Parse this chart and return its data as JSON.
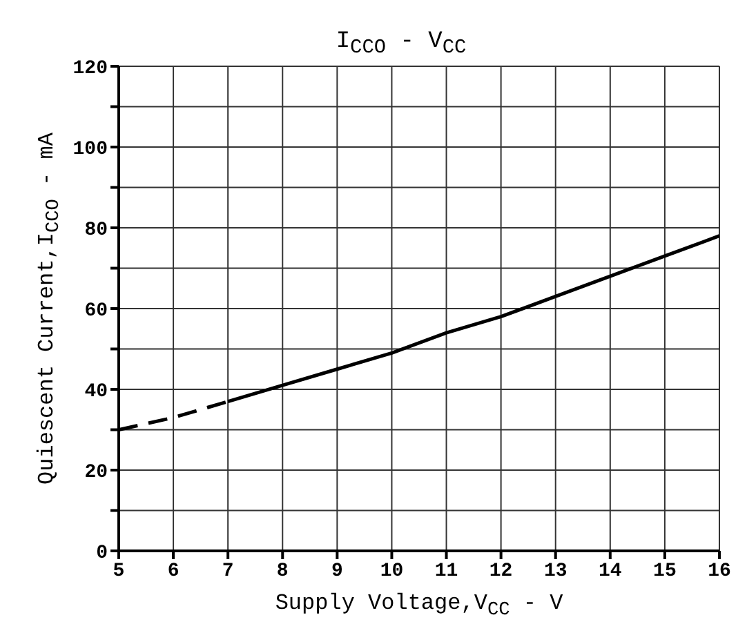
{
  "chart_data": {
    "type": "line",
    "title": "I$_{CCO}$ - V$_{CC}$",
    "xlabel": "Supply Voltage,V$_{CC}$ - V",
    "ylabel": "Quiescent Current,I$_{CCO}$ - mA",
    "series": [
      {
        "color": "#000000",
        "line_style": "dashed",
        "x": [
          5,
          6,
          7
        ],
        "values": [
          30,
          33,
          37
        ]
      },
      {
        "color": "#000000",
        "line_style": "solid",
        "x": [
          7,
          8,
          9,
          10,
          11,
          12,
          13,
          14,
          15,
          16
        ],
        "values": [
          37,
          41,
          45,
          49,
          54,
          58,
          63,
          68,
          73,
          78
        ]
      }
    ],
    "xlim": [
      5,
      16
    ],
    "xticks": [
      5,
      6,
      7,
      8,
      9,
      10,
      11,
      12,
      13,
      14,
      15,
      16
    ],
    "ylim": [
      0,
      120
    ],
    "yticks": [
      0,
      {
        "value": 10,
        "label": null
      },
      20,
      {
        "value": 30,
        "label": null
      },
      40,
      {
        "value": 50,
        "label": null
      },
      60,
      {
        "value": 70,
        "label": null
      },
      80,
      {
        "value": 90,
        "label": null
      },
      100,
      {
        "value": 110,
        "label": null
      },
      120
    ],
    "grid": true,
    "marker": "none"
  }
}
